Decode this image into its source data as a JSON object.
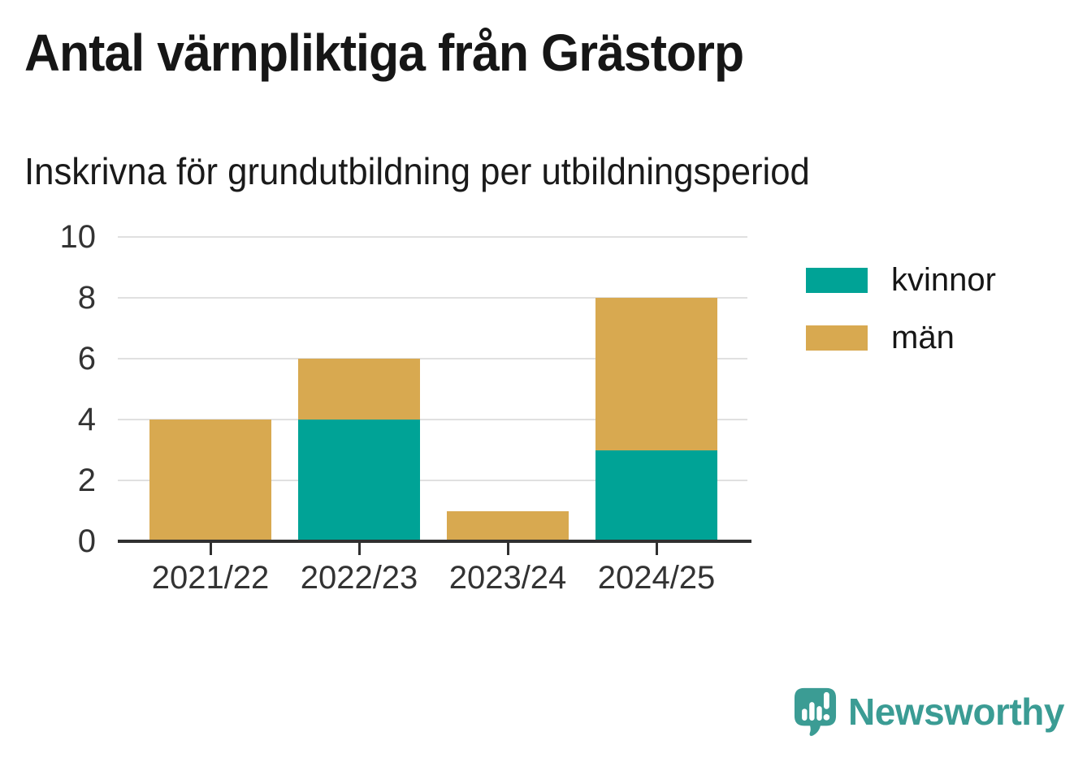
{
  "chart_data": {
    "type": "bar",
    "stacked": true,
    "title": "Antal värnpliktiga från Grästorp",
    "subtitle": "Inskrivna för grundutbildning per utbildningsperiod",
    "categories": [
      "2021/22",
      "2022/23",
      "2023/24",
      "2024/25"
    ],
    "series": [
      {
        "name": "kvinnor",
        "color": "#00a396",
        "values": [
          0,
          4,
          0,
          3
        ]
      },
      {
        "name": "män",
        "color": "#d8a950",
        "values": [
          4,
          2,
          1,
          5
        ]
      }
    ],
    "totals": [
      4,
      6,
      1,
      8
    ],
    "xlabel": "",
    "ylabel": "",
    "ylim": [
      0,
      10
    ],
    "yticks": [
      0,
      2,
      4,
      6,
      8,
      10
    ],
    "grid": true,
    "legend_position": "right"
  },
  "footer": {
    "brand": "Newsworthy"
  },
  "colors": {
    "kvinnor": "#00a396",
    "man": "#d8a950",
    "grid": "#e0e0e0",
    "axis_line": "#303030",
    "axis_text": "#333333",
    "text": "#161616",
    "brand": "#3b9c94"
  }
}
